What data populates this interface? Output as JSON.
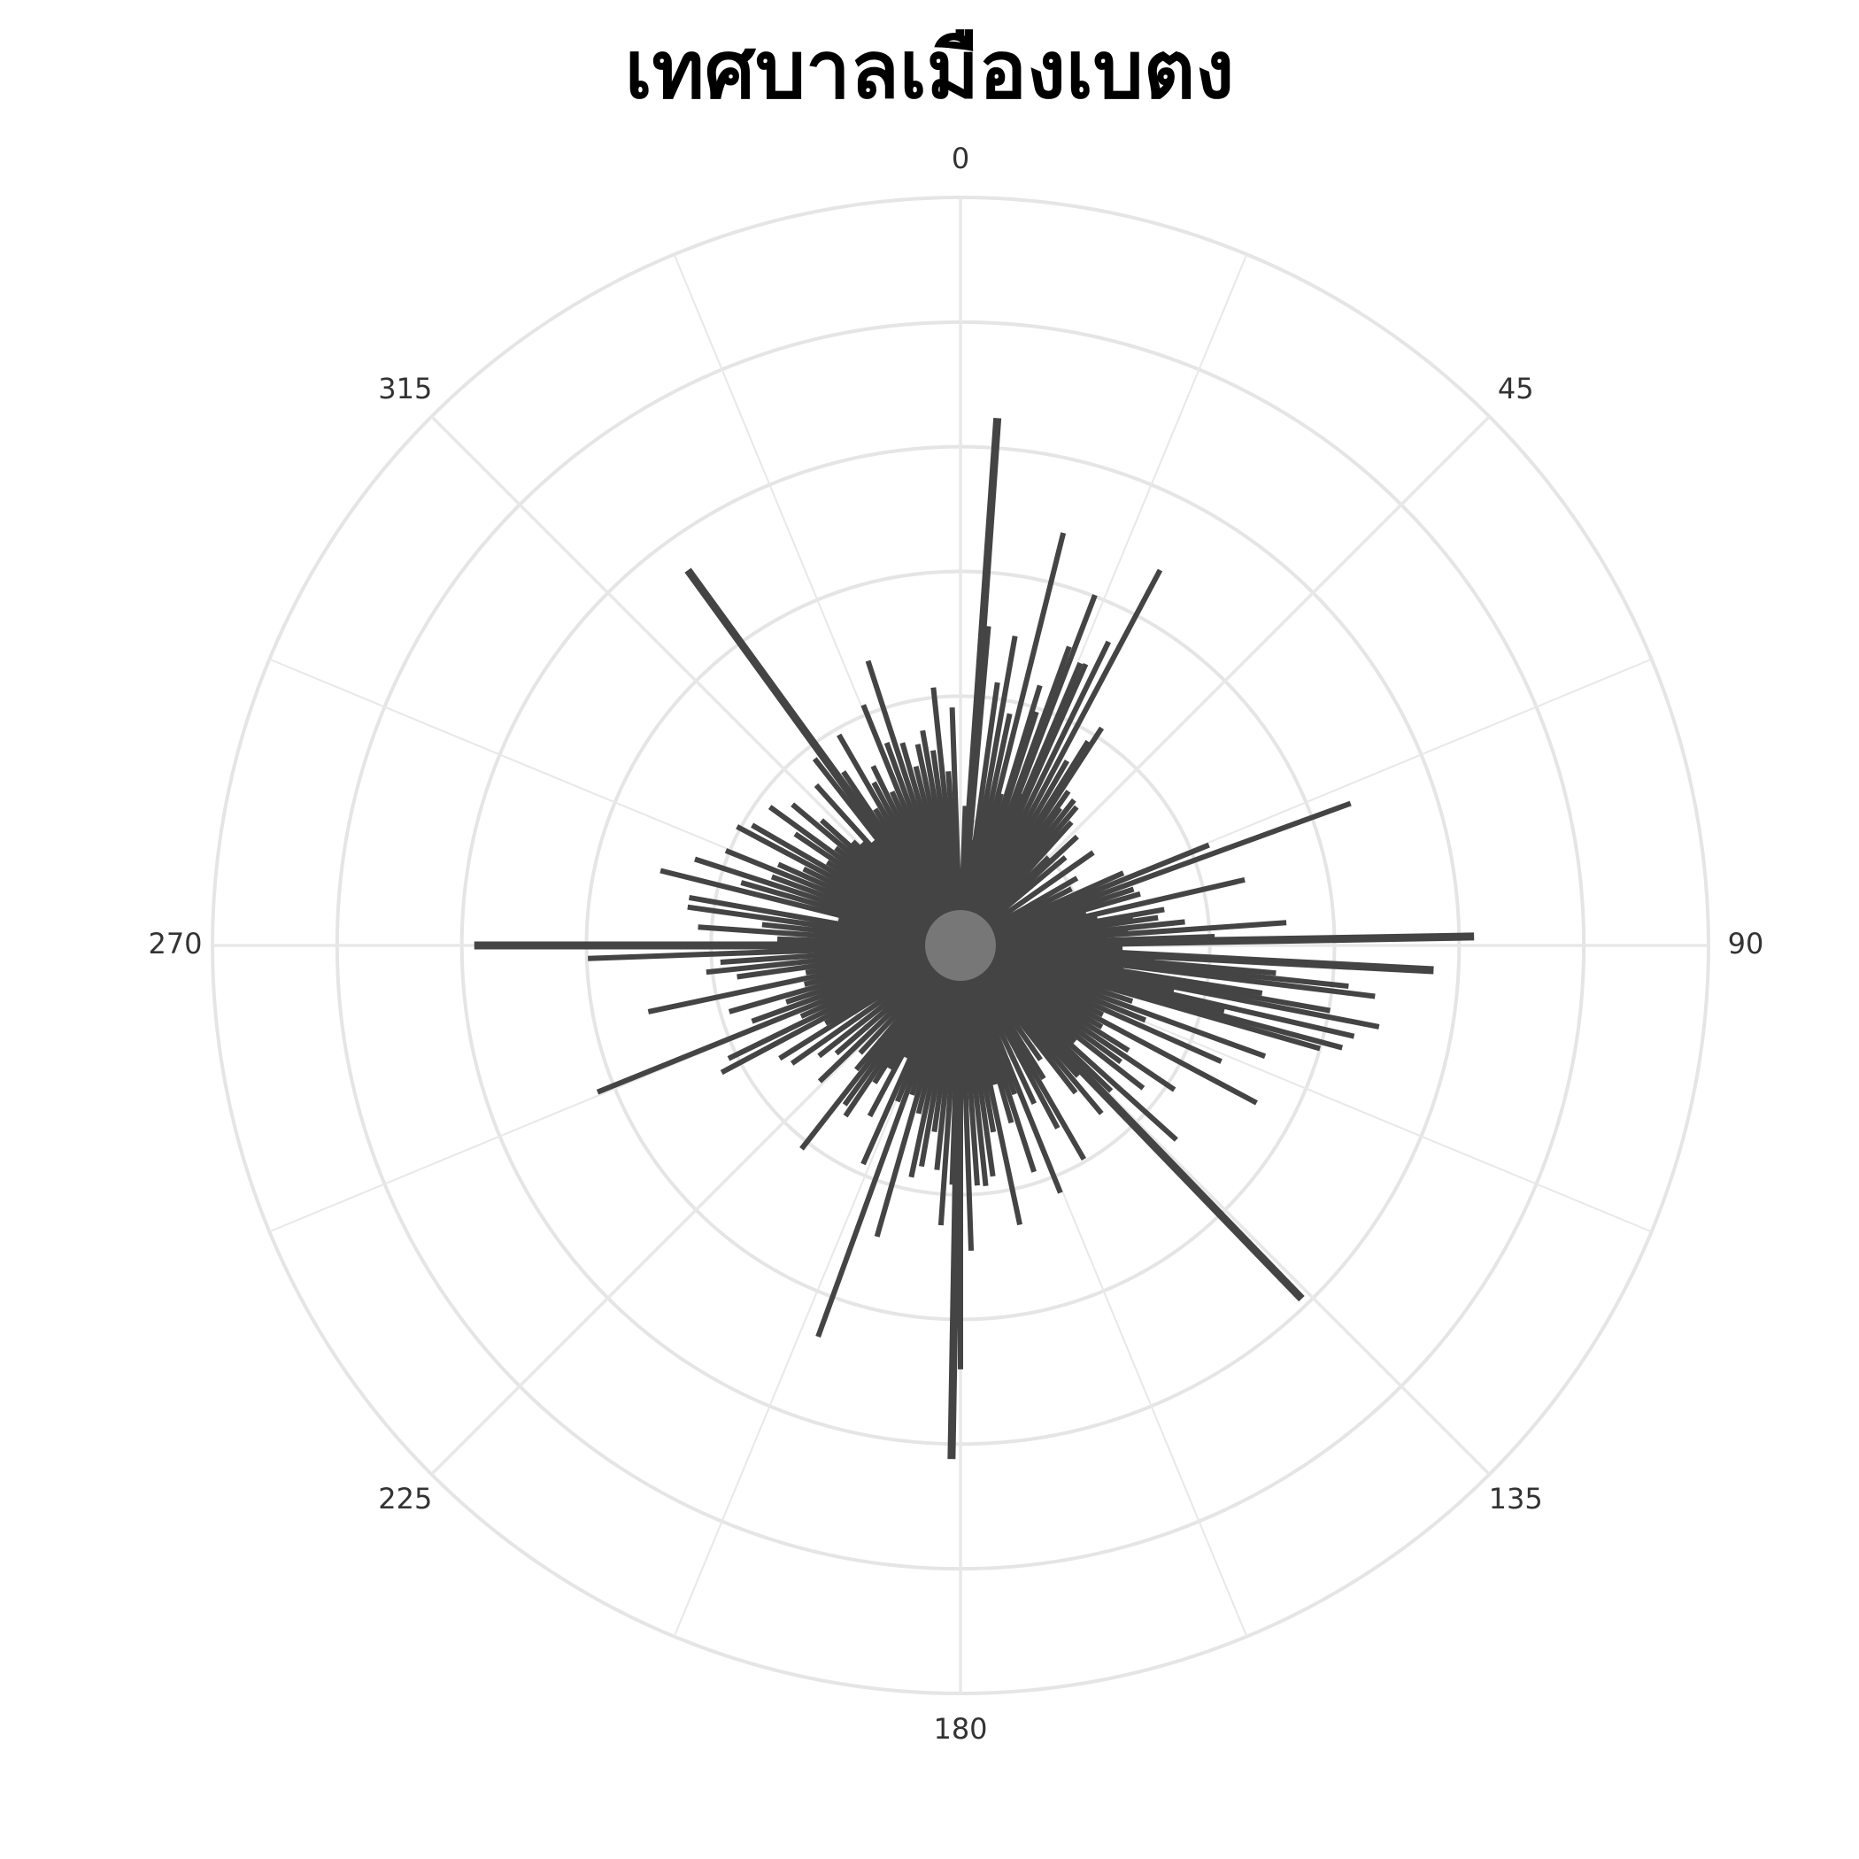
{
  "chart_data": {
    "type": "bar",
    "subtype": "polar-bar",
    "title": "เทศบาลเมืองเบตง",
    "angular_ticks": [
      0,
      45,
      90,
      135,
      180,
      225,
      270,
      315
    ],
    "angular_direction": "clockwise",
    "angular_zero": "top",
    "radial_gridlines": 6,
    "radial_range": [
      0,
      6
    ],
    "grid": true,
    "legend": "none",
    "bar_color": "#444444",
    "bars": [
      [
        2,
        1.12
      ],
      [
        4,
        4.24
      ],
      [
        5,
        2.57
      ],
      [
        6,
        0.85
      ],
      [
        8,
        2.13
      ],
      [
        10,
        2.52
      ],
      [
        12,
        1.9
      ],
      [
        14,
        3.41
      ],
      [
        15,
        1.26
      ],
      [
        17,
        2.18
      ],
      [
        18,
        1.97
      ],
      [
        20,
        2.55
      ],
      [
        21,
        3.01
      ],
      [
        22,
        1.31
      ],
      [
        23,
        2.46
      ],
      [
        24,
        2.47
      ],
      [
        26,
        2.71
      ],
      [
        28,
        3.41
      ],
      [
        30,
        1.71
      ],
      [
        32,
        1.93
      ],
      [
        33,
        2.08
      ],
      [
        35,
        1.51
      ],
      [
        36,
        1.36
      ],
      [
        38,
        1.48
      ],
      [
        40,
        1.45
      ],
      [
        42,
        1.33
      ],
      [
        45,
        1.0
      ],
      [
        47,
        1.28
      ],
      [
        50,
        1.1
      ],
      [
        55,
        1.3
      ],
      [
        60,
        1.08
      ],
      [
        63,
        1.0
      ],
      [
        66,
        1.43
      ],
      [
        68,
        2.15
      ],
      [
        70,
        3.33
      ],
      [
        72,
        1.46
      ],
      [
        74,
        1.5
      ],
      [
        75,
        1.04
      ],
      [
        77,
        2.34
      ],
      [
        79,
        1.12
      ],
      [
        80,
        1.66
      ],
      [
        81,
        1.4
      ],
      [
        82,
        1.6
      ],
      [
        84,
        1.81
      ],
      [
        85,
        1.35
      ],
      [
        86,
        2.62
      ],
      [
        87,
        1.1
      ],
      [
        88,
        2.04
      ],
      [
        89,
        4.12
      ],
      [
        91,
        1.3
      ],
      [
        93,
        3.8
      ],
      [
        94,
        1.56
      ],
      [
        95,
        2.54
      ],
      [
        96,
        3.13
      ],
      [
        97,
        3.35
      ],
      [
        98,
        1.32
      ],
      [
        99,
        2.45
      ],
      [
        100,
        3.01
      ],
      [
        101,
        3.42
      ],
      [
        102,
        1.75
      ],
      [
        103,
        3.24
      ],
      [
        104,
        2.18
      ],
      [
        105,
        3.17
      ],
      [
        106,
        3.0
      ],
      [
        108,
        1.45
      ],
      [
        110,
        2.6
      ],
      [
        112,
        1.6
      ],
      [
        114,
        2.29
      ],
      [
        116,
        1.27
      ],
      [
        118,
        2.69
      ],
      [
        120,
        1.31
      ],
      [
        122,
        1.59
      ],
      [
        124,
        2.07
      ],
      [
        126,
        1.59
      ],
      [
        128,
        1.86
      ],
      [
        130,
        1.2
      ],
      [
        132,
        2.33
      ],
      [
        134,
        1.68
      ],
      [
        136,
        3.94
      ],
      [
        138,
        1.41
      ],
      [
        140,
        1.76
      ],
      [
        142,
        1.5
      ],
      [
        145,
        1.12
      ],
      [
        148,
        1.26
      ],
      [
        150,
        1.98
      ],
      [
        152,
        1.66
      ],
      [
        155,
        1.4
      ],
      [
        158,
        2.14
      ],
      [
        160,
        1.27
      ],
      [
        162,
        1.91
      ],
      [
        164,
        1.48
      ],
      [
        166,
        1.15
      ],
      [
        168,
        2.29
      ],
      [
        170,
        1.52
      ],
      [
        172,
        1.87
      ],
      [
        174,
        1.94
      ],
      [
        176,
        1.93
      ],
      [
        178,
        2.45
      ],
      [
        180,
        3.4
      ],
      [
        181,
        4.12
      ],
      [
        182,
        1.92
      ],
      [
        184,
        2.25
      ],
      [
        186,
        1.81
      ],
      [
        188,
        1.51
      ],
      [
        190,
        1.8
      ],
      [
        192,
        1.9
      ],
      [
        194,
        1.39
      ],
      [
        196,
        2.43
      ],
      [
        198,
        1.26
      ],
      [
        200,
        3.34
      ],
      [
        202,
        1.35
      ],
      [
        204,
        1.92
      ],
      [
        206,
        1.0
      ],
      [
        208,
        1.55
      ],
      [
        210,
        1.14
      ],
      [
        212,
        1.3
      ],
      [
        214,
        1.65
      ],
      [
        216,
        1.58
      ],
      [
        218,
        2.07
      ],
      [
        220,
        1.3
      ],
      [
        223,
        1.18
      ],
      [
        226,
        1.57
      ],
      [
        229,
        1.32
      ],
      [
        232,
        1.44
      ],
      [
        235,
        1.65
      ],
      [
        238,
        1.71
      ],
      [
        240,
        1.25
      ],
      [
        242,
        2.17
      ],
      [
        244,
        2.07
      ],
      [
        246,
        1.4
      ],
      [
        248,
        3.14
      ],
      [
        250,
        1.78
      ],
      [
        252,
        1.47
      ],
      [
        254,
        1.93
      ],
      [
        256,
        1.29
      ],
      [
        258,
        2.56
      ],
      [
        260,
        1.26
      ],
      [
        262,
        1.81
      ],
      [
        264,
        2.05
      ],
      [
        266,
        1.93
      ],
      [
        268,
        2.99
      ],
      [
        270,
        3.9
      ],
      [
        272,
        1.47
      ],
      [
        274,
        2.11
      ],
      [
        276,
        1.6
      ],
      [
        278,
        2.21
      ],
      [
        280,
        2.21
      ],
      [
        282,
        1.0
      ],
      [
        284,
        2.48
      ],
      [
        286,
        1.83
      ],
      [
        288,
        2.24
      ],
      [
        290,
        1.61
      ],
      [
        292,
        2.03
      ],
      [
        294,
        1.6
      ],
      [
        296,
        1.4
      ],
      [
        298,
        2.03
      ],
      [
        300,
        1.93
      ],
      [
        302,
        1.26
      ],
      [
        304,
        1.6
      ],
      [
        306,
        1.89
      ],
      [
        308,
        1.27
      ],
      [
        310,
        1.76
      ],
      [
        312,
        1.5
      ],
      [
        314,
        1.2
      ],
      [
        316,
        1.14
      ],
      [
        318,
        1.73
      ],
      [
        320,
        1.09
      ],
      [
        322,
        1.9
      ],
      [
        324,
        3.72
      ],
      [
        326,
        1.68
      ],
      [
        328,
        1.29
      ],
      [
        330,
        1.95
      ],
      [
        332,
        1.48
      ],
      [
        334,
        1.6
      ],
      [
        336,
        1.35
      ],
      [
        338,
        2.08
      ],
      [
        340,
        1.73
      ],
      [
        342,
        2.4
      ],
      [
        344,
        1.69
      ],
      [
        346,
        1.48
      ],
      [
        348,
        1.65
      ],
      [
        350,
        1.75
      ],
      [
        352,
        1.58
      ],
      [
        354,
        2.08
      ],
      [
        356,
        1.4
      ],
      [
        358,
        1.91
      ]
    ]
  }
}
